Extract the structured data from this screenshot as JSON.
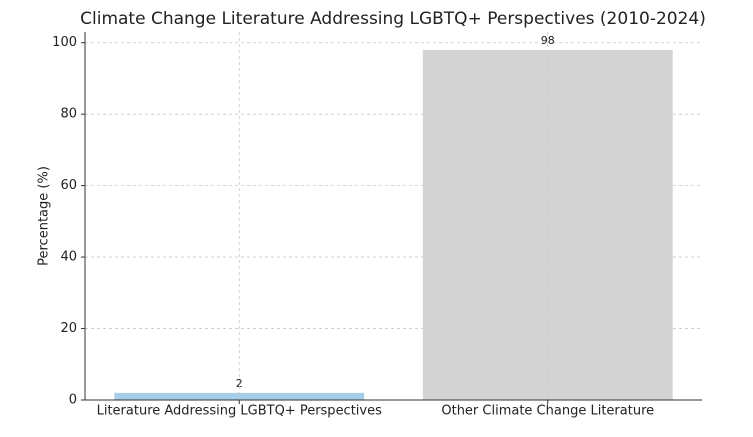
{
  "chart_data": {
    "type": "bar",
    "title": "Climate Change Literature Addressing LGBTQ+ Perspectives (2010-2024)",
    "y_label": "Percentage (%)",
    "categories": [
      "Literature Addressing LGBTQ+ Perspectives",
      "Other Climate Change Literature"
    ],
    "values": [
      2,
      98
    ],
    "colors": [
      "#a6cee8",
      "#d3d3d3"
    ],
    "ylim": [
      0,
      103
    ],
    "yticks": [
      0,
      20,
      40,
      60,
      80,
      100
    ],
    "grid": true
  }
}
